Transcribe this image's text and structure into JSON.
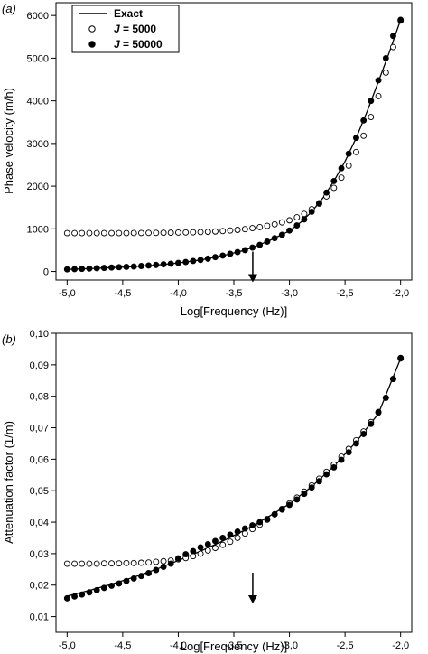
{
  "legend": {
    "exact": "Exact",
    "j_symbol": "J",
    "j5000_value": " = 5000",
    "j50000_value": " = 50000"
  },
  "colors": {
    "ink": "#000000",
    "hollow_fill": "#ffffff",
    "background": "#ffffff"
  },
  "chart_data": [
    {
      "type": "line+scatter",
      "panel_label": "(a)",
      "xlabel": "Log[Frequency (Hz)]",
      "ylabel": "Phase velocity (m/h)",
      "xlim": [
        -5.1,
        -1.9
      ],
      "ylim": [
        -200,
        6300
      ],
      "x_ticks": [
        "-5,0",
        "-4,5",
        "-4,0",
        "-3,5",
        "-3,0",
        "-2,5",
        "-2,0"
      ],
      "y_ticks": [
        "0",
        "1000",
        "2000",
        "3000",
        "4000",
        "5000",
        "6000"
      ],
      "x_tick_values": [
        -5.0,
        -4.5,
        -4.0,
        -3.5,
        -3.0,
        -2.5,
        -2.0
      ],
      "y_tick_values": [
        0,
        1000,
        2000,
        3000,
        4000,
        5000,
        6000
      ],
      "arrow_x": -3.33,
      "series": [
        {
          "name": "Exact",
          "kind": "line",
          "x": [
            -5.0,
            -4.8,
            -4.6,
            -4.4,
            -4.2,
            -4.0,
            -3.8,
            -3.6,
            -3.4,
            -3.2,
            -3.0,
            -2.9,
            -2.8,
            -2.7,
            -2.6,
            -2.5,
            -2.4,
            -2.3,
            -2.2,
            -2.1,
            -2.0
          ],
          "y": [
            50,
            68,
            90,
            115,
            150,
            200,
            270,
            370,
            500,
            700,
            950,
            1150,
            1400,
            1720,
            2120,
            2580,
            3130,
            3760,
            4450,
            5150,
            5900
          ]
        },
        {
          "name": "J = 5000",
          "kind": "hollow",
          "x": [
            -5.0,
            -4.933,
            -4.867,
            -4.8,
            -4.733,
            -4.667,
            -4.6,
            -4.533,
            -4.467,
            -4.4,
            -4.333,
            -4.267,
            -4.2,
            -4.133,
            -4.067,
            -4.0,
            -3.933,
            -3.867,
            -3.8,
            -3.733,
            -3.667,
            -3.6,
            -3.533,
            -3.467,
            -3.4,
            -3.333,
            -3.267,
            -3.2,
            -3.133,
            -3.067,
            -3.0,
            -2.933,
            -2.867,
            -2.8,
            -2.733,
            -2.667,
            -2.6,
            -2.533,
            -2.467,
            -2.4,
            -2.333,
            -2.267,
            -2.2,
            -2.133,
            -2.067,
            -2.0
          ],
          "y": [
            900,
            900,
            900,
            900,
            900,
            900,
            900,
            900,
            900,
            902,
            903,
            904,
            905,
            907,
            909,
            912,
            915,
            919,
            924,
            930,
            938,
            948,
            960,
            975,
            993,
            1015,
            1040,
            1070,
            1105,
            1150,
            1200,
            1270,
            1350,
            1460,
            1590,
            1760,
            1960,
            2200,
            2480,
            2800,
            3180,
            3620,
            4110,
            4660,
            5260,
            5880
          ]
        },
        {
          "name": "J = 50000",
          "kind": "filled",
          "x": [
            -5.0,
            -4.933,
            -4.867,
            -4.8,
            -4.733,
            -4.667,
            -4.6,
            -4.533,
            -4.467,
            -4.4,
            -4.333,
            -4.267,
            -4.2,
            -4.133,
            -4.067,
            -4.0,
            -3.933,
            -3.867,
            -3.8,
            -3.733,
            -3.667,
            -3.6,
            -3.533,
            -3.467,
            -3.4,
            -3.333,
            -3.267,
            -3.2,
            -3.133,
            -3.067,
            -3.0,
            -2.933,
            -2.867,
            -2.8,
            -2.733,
            -2.667,
            -2.6,
            -2.533,
            -2.467,
            -2.4,
            -2.333,
            -2.267,
            -2.2,
            -2.133,
            -2.067,
            -2.0
          ],
          "y": [
            50,
            55,
            62,
            68,
            76,
            83,
            92,
            100,
            108,
            117,
            128,
            140,
            152,
            168,
            183,
            200,
            222,
            245,
            270,
            300,
            335,
            372,
            415,
            455,
            500,
            560,
            625,
            700,
            780,
            860,
            960,
            1080,
            1220,
            1400,
            1600,
            1850,
            2120,
            2420,
            2760,
            3130,
            3540,
            4000,
            4480,
            5000,
            5520,
            5900
          ]
        }
      ]
    },
    {
      "type": "line+scatter",
      "panel_label": "(b)",
      "xlabel": "Log[Frequency (Hz)]",
      "ylabel": "Attenuation factor (1/m)",
      "xlim": [
        -5.1,
        -1.9
      ],
      "ylim": [
        0.005,
        0.1
      ],
      "x_ticks": [
        "-5,0",
        "-4,5",
        "-4,0",
        "-3,5",
        "-3,0",
        "-2,5",
        "-2,0"
      ],
      "y_ticks": [
        "0,01",
        "0,02",
        "0,03",
        "0,04",
        "0,05",
        "0,06",
        "0,07",
        "0,08",
        "0,09",
        "0,10"
      ],
      "x_tick_values": [
        -5.0,
        -4.5,
        -4.0,
        -3.5,
        -3.0,
        -2.5,
        -2.0
      ],
      "y_tick_values": [
        0.01,
        0.02,
        0.03,
        0.04,
        0.05,
        0.06,
        0.07,
        0.08,
        0.09,
        0.1
      ],
      "arrow_x": -3.33,
      "series": [
        {
          "name": "Exact",
          "kind": "line",
          "x": [
            -5.0,
            -4.8,
            -4.6,
            -4.4,
            -4.2,
            -4.0,
            -3.8,
            -3.6,
            -3.4,
            -3.2,
            -3.0,
            -2.8,
            -2.6,
            -2.4,
            -2.2,
            -2.0
          ],
          "y": [
            0.0165,
            0.0183,
            0.0203,
            0.0225,
            0.025,
            0.0278,
            0.0308,
            0.034,
            0.0375,
            0.0415,
            0.0458,
            0.0513,
            0.0578,
            0.0655,
            0.0745,
            0.092
          ]
        },
        {
          "name": "J = 5000",
          "kind": "hollow",
          "x": [
            -5.0,
            -4.933,
            -4.867,
            -4.8,
            -4.733,
            -4.667,
            -4.6,
            -4.533,
            -4.467,
            -4.4,
            -4.333,
            -4.267,
            -4.2,
            -4.133,
            -4.067,
            -4.0,
            -3.933,
            -3.867,
            -3.8,
            -3.733,
            -3.667,
            -3.6,
            -3.533,
            -3.467,
            -3.4,
            -3.333,
            -3.267,
            -3.2,
            -3.133,
            -3.067,
            -3.0,
            -2.933,
            -2.867,
            -2.8,
            -2.733,
            -2.667,
            -2.6,
            -2.533,
            -2.467,
            -2.4,
            -2.333,
            -2.267,
            -2.2,
            -2.133,
            -2.067,
            -2.0
          ],
          "y": [
            0.0268,
            0.0268,
            0.0268,
            0.0268,
            0.0268,
            0.0269,
            0.0269,
            0.0269,
            0.027,
            0.027,
            0.0271,
            0.0272,
            0.0274,
            0.0276,
            0.0278,
            0.0282,
            0.0286,
            0.0292,
            0.03,
            0.031,
            0.0318,
            0.0328,
            0.0338,
            0.035,
            0.0364,
            0.0378,
            0.0392,
            0.0408,
            0.0425,
            0.0442,
            0.046,
            0.0478,
            0.0497,
            0.0517,
            0.0538,
            0.056,
            0.0583,
            0.0608,
            0.0633,
            0.066,
            0.0688,
            0.0718,
            0.075,
            0.0795,
            0.0855,
            0.0922
          ]
        },
        {
          "name": "J = 50000",
          "kind": "filled",
          "x": [
            -5.0,
            -4.933,
            -4.867,
            -4.8,
            -4.733,
            -4.667,
            -4.6,
            -4.533,
            -4.467,
            -4.4,
            -4.333,
            -4.267,
            -4.2,
            -4.133,
            -4.067,
            -4.0,
            -3.933,
            -3.867,
            -3.8,
            -3.733,
            -3.667,
            -3.6,
            -3.533,
            -3.467,
            -3.4,
            -3.333,
            -3.267,
            -3.2,
            -3.133,
            -3.067,
            -3.0,
            -2.933,
            -2.867,
            -2.8,
            -2.733,
            -2.667,
            -2.6,
            -2.533,
            -2.467,
            -2.4,
            -2.333,
            -2.267,
            -2.2,
            -2.133,
            -2.067,
            -2.0
          ],
          "y": [
            0.0158,
            0.0164,
            0.017,
            0.0177,
            0.0184,
            0.0191,
            0.0198,
            0.0205,
            0.0213,
            0.0221,
            0.0229,
            0.0238,
            0.0248,
            0.0258,
            0.0268,
            0.0285,
            0.0298,
            0.0308,
            0.032,
            0.033,
            0.034,
            0.035,
            0.036,
            0.037,
            0.038,
            0.039,
            0.04,
            0.041,
            0.0425,
            0.044,
            0.0455,
            0.0472,
            0.049,
            0.051,
            0.053,
            0.0552,
            0.0574,
            0.0598,
            0.0622,
            0.065,
            0.068,
            0.0712,
            0.0748,
            0.0795,
            0.0855,
            0.092
          ]
        }
      ]
    }
  ]
}
